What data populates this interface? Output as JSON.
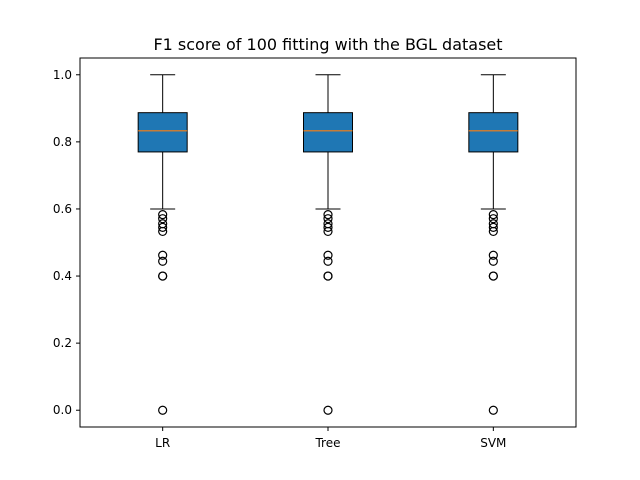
{
  "chart_data": {
    "type": "box",
    "title": "F1 score of 100 fitting with the BGL dataset",
    "xlabel": "",
    "ylabel": "",
    "categories": [
      "LR",
      "Tree",
      "SVM"
    ],
    "ylim": [
      -0.05,
      1.05
    ],
    "yticks": [
      0.0,
      0.2,
      0.4,
      0.6,
      0.8,
      1.0
    ],
    "ytick_labels": [
      "0.0",
      "0.2",
      "0.4",
      "0.6",
      "0.8",
      "1.0"
    ],
    "grid": false,
    "series": [
      {
        "category": "LR",
        "whisker_low": 0.6,
        "q1": 0.77,
        "median": 0.833,
        "q3": 0.887,
        "whisker_high": 1.0,
        "outliers": [
          0.583,
          0.571,
          0.556,
          0.545,
          0.533,
          0.462,
          0.444,
          0.4,
          0.4,
          0.0
        ]
      },
      {
        "category": "Tree",
        "whisker_low": 0.6,
        "q1": 0.77,
        "median": 0.833,
        "q3": 0.887,
        "whisker_high": 1.0,
        "outliers": [
          0.583,
          0.571,
          0.556,
          0.545,
          0.533,
          0.462,
          0.444,
          0.4,
          0.4,
          0.0
        ]
      },
      {
        "category": "SVM",
        "whisker_low": 0.6,
        "q1": 0.77,
        "median": 0.833,
        "q3": 0.887,
        "whisker_high": 1.0,
        "outliers": [
          0.583,
          0.571,
          0.556,
          0.545,
          0.533,
          0.462,
          0.444,
          0.4,
          0.4,
          0.0
        ]
      }
    ],
    "colors": {
      "box_fill": "#1f77b4",
      "median": "#ff7f0e",
      "line": "#000000"
    }
  }
}
